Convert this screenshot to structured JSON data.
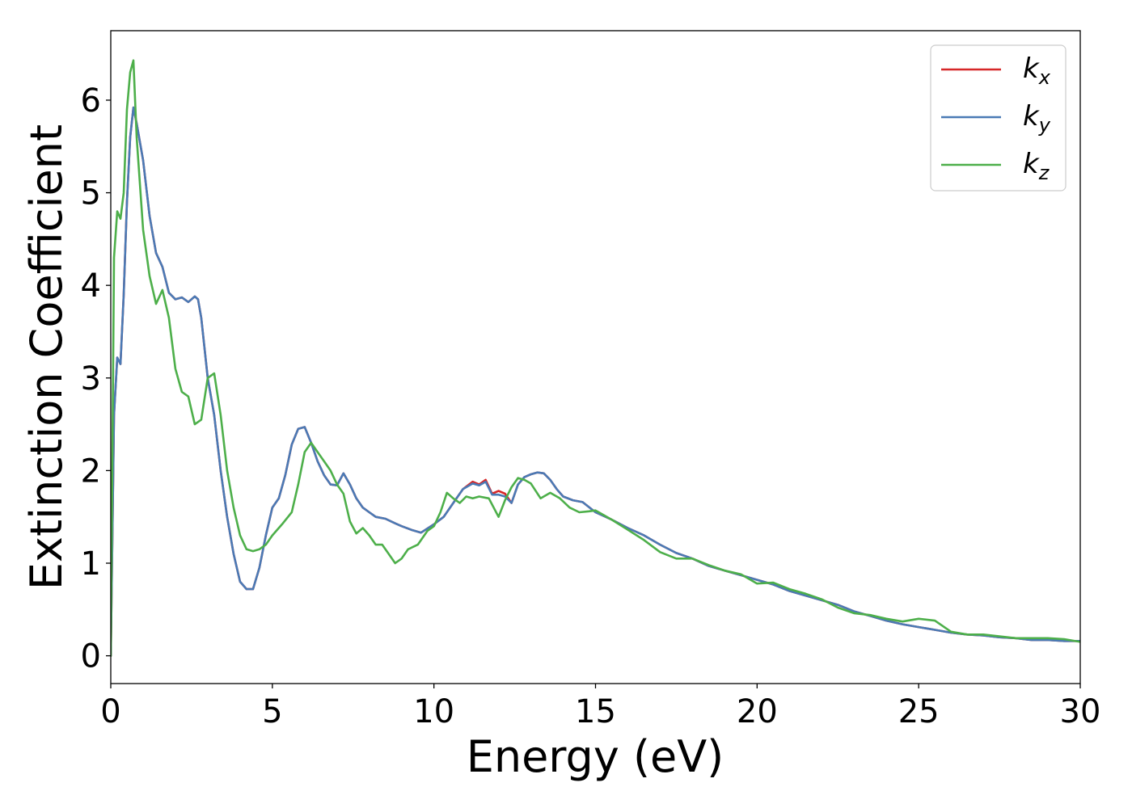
{
  "chart_data": {
    "type": "line",
    "title": "",
    "xlabel": "Energy (eV)",
    "ylabel": "Extinction Coefficient",
    "xlim": [
      0,
      30
    ],
    "ylim": [
      -0.3,
      6.75
    ],
    "xticks": [
      0,
      5,
      10,
      15,
      20,
      25,
      30
    ],
    "yticks": [
      0,
      1,
      2,
      3,
      4,
      5,
      6
    ],
    "grid": false,
    "legend_position": "top-right",
    "series": [
      {
        "name": "kx",
        "legend_base": "k",
        "legend_sub": "x",
        "color": "#d62728",
        "x": [
          0,
          0.1,
          0.2,
          0.3,
          0.4,
          0.5,
          0.6,
          0.7,
          0.8,
          1.0,
          1.2,
          1.4,
          1.6,
          1.8,
          2.0,
          2.2,
          2.4,
          2.6,
          2.7,
          2.8,
          3.0,
          3.2,
          3.4,
          3.6,
          3.8,
          4.0,
          4.2,
          4.4,
          4.6,
          4.8,
          5.0,
          5.2,
          5.4,
          5.6,
          5.8,
          6.0,
          6.2,
          6.4,
          6.6,
          6.8,
          7.0,
          7.2,
          7.4,
          7.6,
          7.8,
          8.0,
          8.2,
          8.5,
          8.8,
          9.0,
          9.3,
          9.6,
          10.0,
          10.3,
          10.6,
          10.9,
          11.2,
          11.4,
          11.6,
          11.8,
          12.0,
          12.2,
          12.4,
          12.6,
          12.8,
          13.0,
          13.2,
          13.4,
          13.6,
          13.8,
          14.0,
          14.3,
          14.6,
          15.0,
          15.5,
          16.0,
          16.5,
          17.0,
          17.5,
          18.0,
          18.5,
          19.0,
          19.5,
          20.0,
          20.5,
          21.0,
          21.5,
          22.0,
          22.5,
          23.0,
          23.5,
          24.0,
          24.5,
          25.0,
          25.5,
          26.0,
          26.5,
          27.0,
          27.5,
          28.0,
          28.5,
          29.0,
          29.5,
          30.0
        ],
        "y": [
          0.0,
          2.6,
          3.22,
          3.15,
          3.9,
          4.9,
          5.6,
          5.92,
          5.75,
          5.35,
          4.75,
          4.35,
          4.2,
          3.92,
          3.85,
          3.87,
          3.82,
          3.88,
          3.85,
          3.65,
          3.0,
          2.6,
          2.0,
          1.5,
          1.1,
          0.8,
          0.72,
          0.72,
          0.95,
          1.3,
          1.6,
          1.7,
          1.95,
          2.28,
          2.45,
          2.47,
          2.3,
          2.1,
          1.95,
          1.85,
          1.84,
          1.97,
          1.85,
          1.7,
          1.6,
          1.55,
          1.5,
          1.48,
          1.43,
          1.4,
          1.36,
          1.33,
          1.42,
          1.5,
          1.65,
          1.8,
          1.88,
          1.85,
          1.9,
          1.75,
          1.78,
          1.75,
          1.65,
          1.85,
          1.93,
          1.96,
          1.98,
          1.97,
          1.9,
          1.8,
          1.72,
          1.68,
          1.66,
          1.55,
          1.47,
          1.38,
          1.3,
          1.2,
          1.11,
          1.05,
          0.97,
          0.92,
          0.87,
          0.82,
          0.77,
          0.7,
          0.65,
          0.6,
          0.55,
          0.48,
          0.43,
          0.38,
          0.34,
          0.31,
          0.28,
          0.25,
          0.23,
          0.22,
          0.2,
          0.19,
          0.17,
          0.17,
          0.16,
          0.16
        ]
      },
      {
        "name": "ky",
        "legend_base": "k",
        "legend_sub": "y",
        "color": "#4a7ab5",
        "x": [
          0,
          0.1,
          0.2,
          0.3,
          0.4,
          0.5,
          0.6,
          0.7,
          0.8,
          1.0,
          1.2,
          1.4,
          1.6,
          1.8,
          2.0,
          2.2,
          2.4,
          2.6,
          2.7,
          2.8,
          3.0,
          3.2,
          3.4,
          3.6,
          3.8,
          4.0,
          4.2,
          4.4,
          4.6,
          4.8,
          5.0,
          5.2,
          5.4,
          5.6,
          5.8,
          6.0,
          6.2,
          6.4,
          6.6,
          6.8,
          7.0,
          7.2,
          7.4,
          7.6,
          7.8,
          8.0,
          8.2,
          8.5,
          8.8,
          9.0,
          9.3,
          9.6,
          10.0,
          10.3,
          10.6,
          10.9,
          11.2,
          11.4,
          11.6,
          11.8,
          12.0,
          12.2,
          12.4,
          12.6,
          12.8,
          13.0,
          13.2,
          13.4,
          13.6,
          13.8,
          14.0,
          14.3,
          14.6,
          15.0,
          15.5,
          16.0,
          16.5,
          17.0,
          17.5,
          18.0,
          18.5,
          19.0,
          19.5,
          20.0,
          20.5,
          21.0,
          21.5,
          22.0,
          22.5,
          23.0,
          23.5,
          24.0,
          24.5,
          25.0,
          25.5,
          26.0,
          26.5,
          27.0,
          27.5,
          28.0,
          28.5,
          29.0,
          29.5,
          30.0
        ],
        "y": [
          0.0,
          2.6,
          3.22,
          3.15,
          3.9,
          4.9,
          5.6,
          5.92,
          5.75,
          5.35,
          4.75,
          4.35,
          4.2,
          3.92,
          3.85,
          3.87,
          3.82,
          3.88,
          3.85,
          3.65,
          3.0,
          2.6,
          2.0,
          1.5,
          1.1,
          0.8,
          0.72,
          0.72,
          0.95,
          1.3,
          1.6,
          1.7,
          1.95,
          2.28,
          2.45,
          2.47,
          2.3,
          2.1,
          1.95,
          1.85,
          1.84,
          1.97,
          1.85,
          1.7,
          1.6,
          1.55,
          1.5,
          1.48,
          1.43,
          1.4,
          1.36,
          1.33,
          1.42,
          1.5,
          1.65,
          1.8,
          1.86,
          1.84,
          1.88,
          1.74,
          1.74,
          1.72,
          1.65,
          1.85,
          1.93,
          1.96,
          1.98,
          1.97,
          1.9,
          1.8,
          1.72,
          1.68,
          1.66,
          1.55,
          1.47,
          1.38,
          1.3,
          1.2,
          1.11,
          1.05,
          0.97,
          0.92,
          0.87,
          0.82,
          0.77,
          0.7,
          0.65,
          0.6,
          0.55,
          0.48,
          0.43,
          0.38,
          0.34,
          0.31,
          0.28,
          0.25,
          0.23,
          0.22,
          0.2,
          0.19,
          0.17,
          0.17,
          0.16,
          0.16
        ]
      },
      {
        "name": "kz",
        "legend_base": "k",
        "legend_sub": "z",
        "color": "#4daf4a",
        "x": [
          0,
          0.1,
          0.2,
          0.3,
          0.4,
          0.5,
          0.6,
          0.7,
          0.8,
          1.0,
          1.2,
          1.4,
          1.6,
          1.8,
          2.0,
          2.2,
          2.4,
          2.6,
          2.8,
          3.0,
          3.2,
          3.4,
          3.6,
          3.8,
          4.0,
          4.2,
          4.4,
          4.6,
          4.8,
          5.0,
          5.3,
          5.6,
          5.8,
          6.0,
          6.2,
          6.4,
          6.6,
          6.8,
          7.0,
          7.2,
          7.4,
          7.6,
          7.8,
          8.0,
          8.2,
          8.4,
          8.6,
          8.8,
          9.0,
          9.2,
          9.5,
          9.8,
          10.0,
          10.2,
          10.4,
          10.6,
          10.8,
          11.0,
          11.2,
          11.4,
          11.7,
          12.0,
          12.2,
          12.4,
          12.6,
          12.8,
          13.0,
          13.3,
          13.6,
          13.9,
          14.2,
          14.5,
          14.8,
          15.0,
          15.5,
          16.0,
          16.5,
          17.0,
          17.5,
          18.0,
          18.5,
          19.0,
          19.5,
          20.0,
          20.5,
          21.0,
          21.5,
          22.0,
          22.5,
          23.0,
          23.5,
          24.0,
          24.5,
          25.0,
          25.5,
          26.0,
          26.5,
          27.0,
          27.5,
          28.0,
          28.5,
          29.0,
          29.5,
          30.0
        ],
        "y": [
          0.0,
          4.3,
          4.8,
          4.72,
          5.0,
          5.9,
          6.3,
          6.43,
          5.6,
          4.6,
          4.1,
          3.8,
          3.95,
          3.65,
          3.1,
          2.85,
          2.8,
          2.5,
          2.55,
          3.0,
          3.05,
          2.6,
          2.0,
          1.6,
          1.3,
          1.15,
          1.13,
          1.15,
          1.2,
          1.3,
          1.42,
          1.55,
          1.85,
          2.2,
          2.3,
          2.2,
          2.1,
          2.0,
          1.85,
          1.75,
          1.45,
          1.32,
          1.38,
          1.3,
          1.2,
          1.2,
          1.1,
          1.0,
          1.05,
          1.15,
          1.2,
          1.35,
          1.4,
          1.55,
          1.76,
          1.7,
          1.65,
          1.72,
          1.7,
          1.72,
          1.7,
          1.5,
          1.68,
          1.82,
          1.92,
          1.9,
          1.86,
          1.7,
          1.76,
          1.7,
          1.6,
          1.55,
          1.56,
          1.57,
          1.47,
          1.36,
          1.25,
          1.12,
          1.05,
          1.05,
          0.98,
          0.92,
          0.88,
          0.78,
          0.79,
          0.72,
          0.67,
          0.61,
          0.52,
          0.46,
          0.44,
          0.4,
          0.37,
          0.4,
          0.38,
          0.26,
          0.23,
          0.23,
          0.21,
          0.19,
          0.19,
          0.19,
          0.18,
          0.15
        ]
      }
    ]
  }
}
